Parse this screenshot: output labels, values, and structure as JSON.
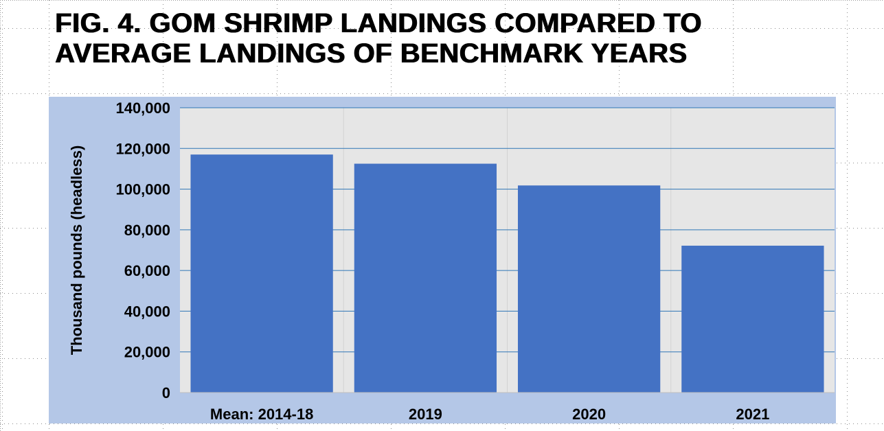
{
  "title_lines": [
    "FIG. 4. GOM SHRIMP LANDINGS COMPARED TO",
    "AVERAGE LANDINGS OF BENCHMARK YEARS"
  ],
  "colors": {
    "bar": "#4472c4",
    "plot_background": "#e6e6e6",
    "frame_background": "#b4c7e7",
    "gridline": "#2e75b6"
  },
  "chart_data": {
    "type": "bar",
    "title": "FIG. 4. GOM SHRIMP LANDINGS COMPARED TO AVERAGE LANDINGS OF BENCHMARK YEARS",
    "categories": [
      "Mean: 2014-18",
      "2019",
      "2020",
      "2021"
    ],
    "values": [
      117000,
      112500,
      101800,
      72200
    ],
    "ylabel": "Thousand pounds (headless)",
    "xlabel": "",
    "ylim": [
      0,
      140000
    ],
    "yticks": [
      0,
      20000,
      40000,
      60000,
      80000,
      100000,
      120000,
      140000
    ],
    "ytick_labels": [
      "0",
      "20,000",
      "40,000",
      "60,000",
      "80,000",
      "100,000",
      "120,000",
      "140,000"
    ],
    "grid": true,
    "legend": "none"
  }
}
